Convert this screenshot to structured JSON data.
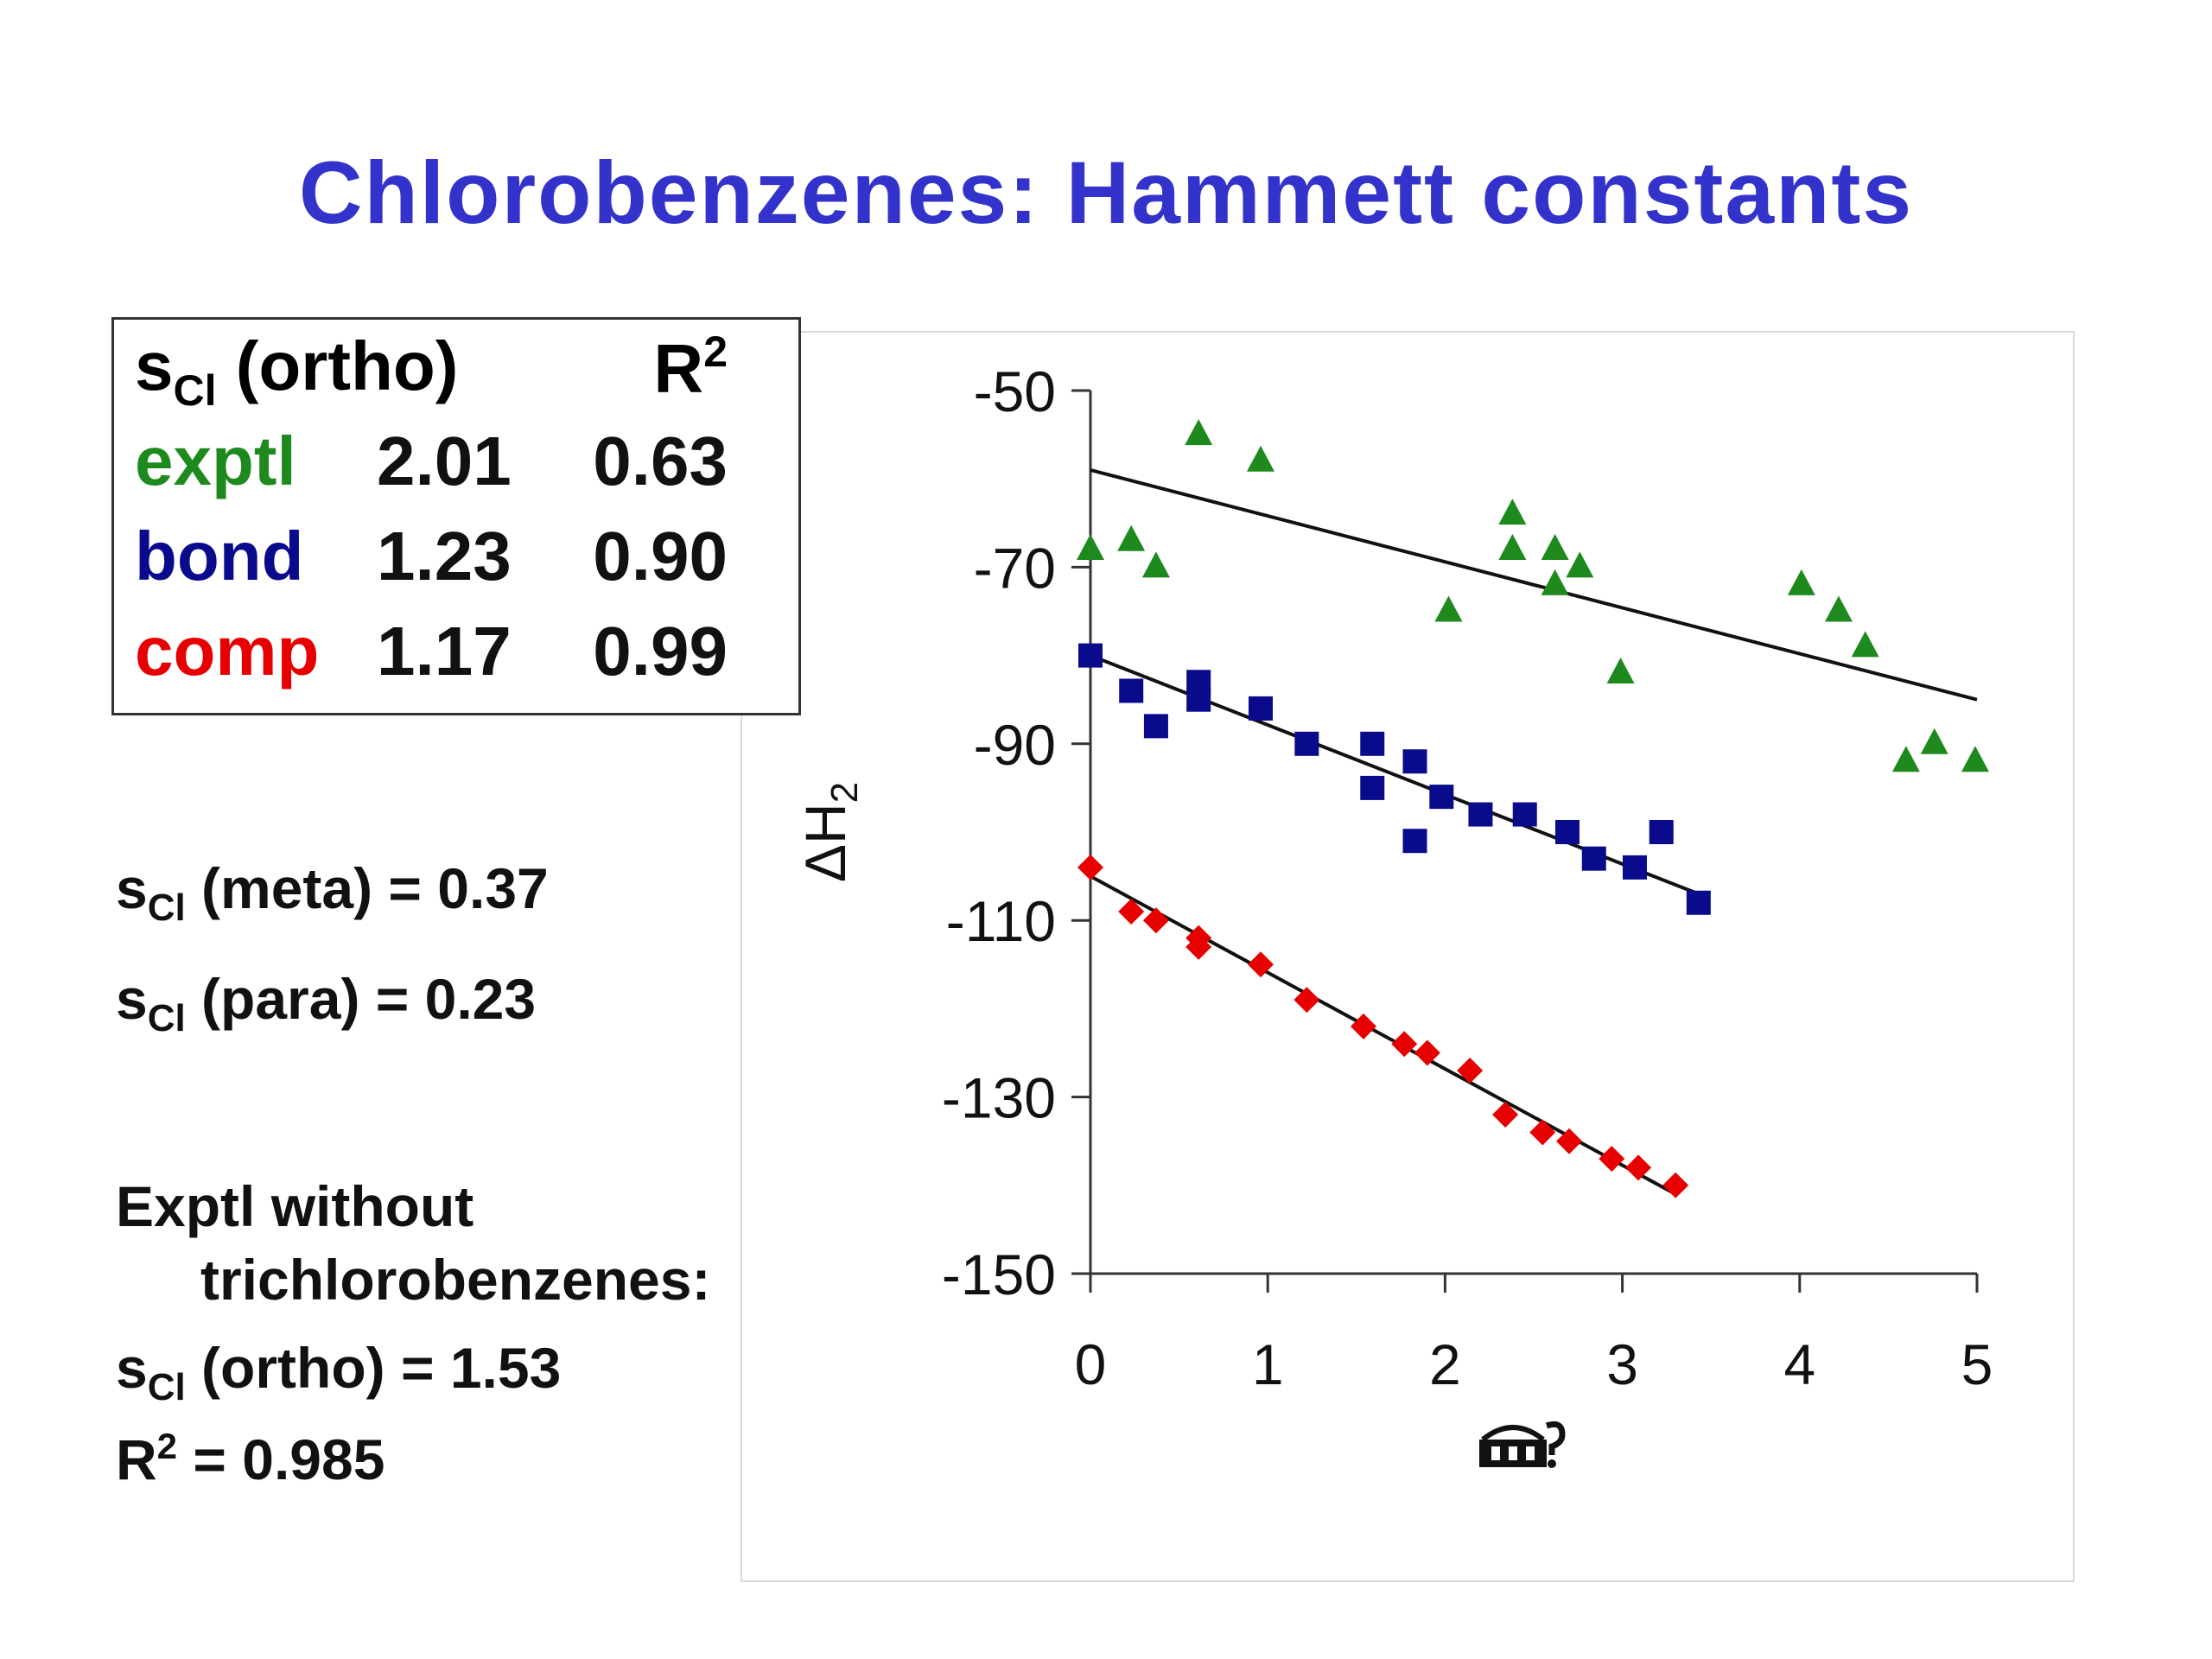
{
  "title": "Chlorobenzenes:  Hammett constants",
  "stats_table": {
    "header": {
      "label": "s",
      "label_sub": "Cl",
      "label_rest": " (ortho)",
      "r2": "R",
      "r2_sup": "2"
    },
    "rows": [
      {
        "name": "exptl",
        "s": "2.01",
        "r2": "0.63",
        "color": "#1e8a1e"
      },
      {
        "name": "bond",
        "s": "1.23",
        "r2": "0.90",
        "color": "#0a0a8c"
      },
      {
        "name": "comp",
        "s": "1.17",
        "r2": "0.99",
        "color": "#e60000"
      }
    ]
  },
  "notes": {
    "meta": {
      "s": "s",
      "sub": "Cl",
      "rest": " (meta) = 0.37"
    },
    "para": {
      "s": "s",
      "sub": "Cl",
      "rest": " (para) = 0.23"
    },
    "exptl_line1": "Exptl without",
    "exptl_line2": "trichlorobenzenes:",
    "ortho": {
      "s": "s",
      "sub": "Cl",
      "rest": " (ortho) = 1.53"
    },
    "r2": {
      "r": "R",
      "sup": "2",
      "rest": " =  0.985"
    }
  },
  "chart_data": {
    "type": "scatter",
    "ylabel": "ΔH2",
    "xlim": [
      0,
      5
    ],
    "ylim": [
      -150,
      -50
    ],
    "xticks": [
      "0",
      "1",
      "2",
      "3",
      "4",
      "5"
    ],
    "yticks": [
      "-50",
      "-70",
      "-90",
      "-110",
      "-130",
      "-150"
    ],
    "series": [
      {
        "name": "exptl",
        "marker": "triangle",
        "color": "#1e8a1e",
        "points": [
          [
            0,
            -68
          ],
          [
            0.23,
            -67
          ],
          [
            0.37,
            -70
          ],
          [
            0.61,
            -55
          ],
          [
            0.96,
            -58
          ],
          [
            2.02,
            -75
          ],
          [
            2.38,
            -64
          ],
          [
            2.38,
            -68
          ],
          [
            2.62,
            -68
          ],
          [
            2.62,
            -72
          ],
          [
            2.76,
            -70
          ],
          [
            2.99,
            -82
          ],
          [
            4.01,
            -72
          ],
          [
            4.22,
            -75
          ],
          [
            4.37,
            -79
          ],
          [
            4.6,
            -92
          ],
          [
            4.76,
            -90
          ],
          [
            4.99,
            -92
          ]
        ],
        "fit": [
          [
            0,
            -59
          ],
          [
            5,
            -85
          ]
        ]
      },
      {
        "name": "bond",
        "marker": "square",
        "color": "#0a0a8c",
        "points": [
          [
            0,
            -80
          ],
          [
            0.23,
            -84
          ],
          [
            0.37,
            -88
          ],
          [
            0.61,
            -83
          ],
          [
            0.61,
            -85
          ],
          [
            0.96,
            -86
          ],
          [
            1.22,
            -90
          ],
          [
            1.59,
            -90
          ],
          [
            1.59,
            -95
          ],
          [
            1.83,
            -92
          ],
          [
            1.83,
            -101
          ],
          [
            1.98,
            -96
          ],
          [
            2.2,
            -98
          ],
          [
            2.45,
            -98
          ],
          [
            2.69,
            -100
          ],
          [
            2.84,
            -103
          ],
          [
            3.07,
            -104
          ],
          [
            3.22,
            -100
          ],
          [
            3.43,
            -108
          ]
        ],
        "fit": [
          [
            0,
            -80
          ],
          [
            3.43,
            -107
          ]
        ]
      },
      {
        "name": "comp",
        "marker": "diamond",
        "color": "#e60000",
        "points": [
          [
            0,
            -104
          ],
          [
            0.23,
            -109
          ],
          [
            0.37,
            -110
          ],
          [
            0.61,
            -112
          ],
          [
            0.61,
            -113
          ],
          [
            0.96,
            -115
          ],
          [
            1.22,
            -119
          ],
          [
            1.54,
            -122
          ],
          [
            1.77,
            -124
          ],
          [
            1.9,
            -125
          ],
          [
            2.14,
            -127
          ],
          [
            2.34,
            -132
          ],
          [
            2.55,
            -134
          ],
          [
            2.7,
            -135
          ],
          [
            2.94,
            -137
          ],
          [
            3.09,
            -138
          ],
          [
            3.3,
            -140
          ]
        ],
        "fit": [
          [
            0,
            -105
          ],
          [
            3.3,
            -141
          ]
        ]
      }
    ]
  }
}
